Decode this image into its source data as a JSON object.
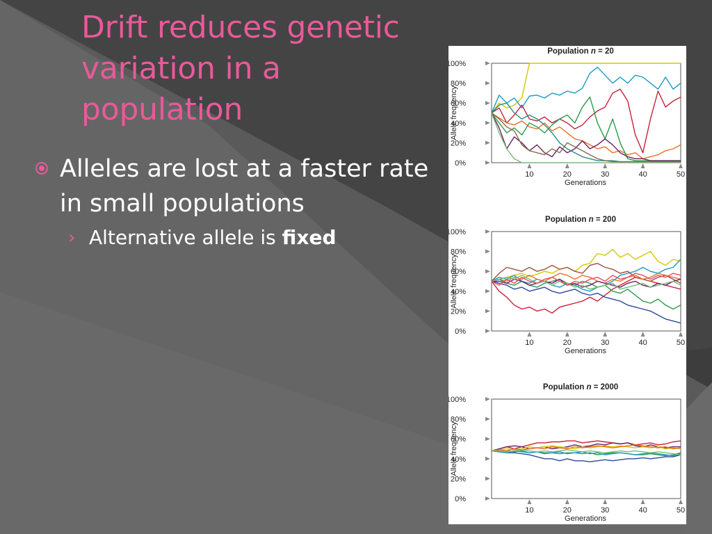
{
  "slide": {
    "title": "Drift reduces genetic variation in a population",
    "bullet": "Alleles are lost at a faster rate in small populations",
    "sub_bullet_prefix": "Alternative allele is ",
    "sub_bullet_bold": "fixed",
    "colors": {
      "title": "#e85a9a",
      "bullet_marker": "#e85a9a",
      "text": "#ffffff"
    },
    "icons": {
      "bullet": "target-bullet-icon",
      "sub_bullet": "chevron-right-icon"
    }
  },
  "chart_data": [
    {
      "type": "line",
      "title": "Population n = 20",
      "xlabel": "Generations",
      "ylabel": "Allele frequency",
      "xlim": [
        0,
        50
      ],
      "ylim": [
        0,
        100
      ],
      "xticks": [
        10,
        20,
        30,
        40,
        50
      ],
      "yticks": [
        "0%",
        "20%",
        "40%",
        "60%",
        "80%",
        "100%"
      ],
      "x": [
        0,
        2,
        4,
        6,
        8,
        10,
        12,
        14,
        16,
        18,
        20,
        22,
        24,
        26,
        28,
        30,
        32,
        34,
        36,
        38,
        40,
        42,
        44,
        46,
        48,
        50
      ],
      "series": [
        {
          "color": "#d4c800",
          "values": [
            50,
            60,
            55,
            58,
            65,
            100,
            100,
            100,
            100,
            100,
            100,
            100,
            100,
            100,
            100,
            100,
            100,
            100,
            100,
            100,
            100,
            100,
            100,
            100,
            100,
            100
          ]
        },
        {
          "color": "#1a9bc4",
          "values": [
            50,
            68,
            60,
            65,
            55,
            67,
            68,
            65,
            70,
            68,
            72,
            70,
            75,
            90,
            96,
            88,
            80,
            86,
            80,
            88,
            86,
            80,
            74,
            86,
            74,
            80
          ]
        },
        {
          "color": "#c8203c",
          "values": [
            50,
            55,
            40,
            48,
            58,
            44,
            42,
            46,
            40,
            44,
            40,
            34,
            38,
            46,
            52,
            56,
            70,
            74,
            62,
            28,
            10,
            44,
            72,
            56,
            62,
            66
          ]
        },
        {
          "color": "#e87028",
          "values": [
            50,
            45,
            40,
            38,
            42,
            36,
            34,
            40,
            32,
            36,
            30,
            24,
            22,
            18,
            14,
            16,
            10,
            12,
            8,
            10,
            4,
            6,
            8,
            12,
            14,
            18
          ]
        },
        {
          "color": "#2a9a4a",
          "values": [
            50,
            40,
            30,
            35,
            28,
            40,
            36,
            30,
            38,
            44,
            48,
            40,
            56,
            66,
            40,
            24,
            44,
            20,
            4,
            2,
            2,
            2,
            2,
            2,
            2,
            2
          ]
        },
        {
          "color": "#6a2060",
          "values": [
            50,
            35,
            14,
            26,
            20,
            12,
            18,
            10,
            6,
            16,
            10,
            14,
            22,
            14,
            18,
            24,
            18,
            10,
            6,
            4,
            4,
            2,
            2,
            2,
            2,
            2
          ]
        },
        {
          "color": "#2a8a8a",
          "values": [
            50,
            58,
            60,
            50,
            44,
            48,
            44,
            38,
            30,
            20,
            14,
            10,
            6,
            4,
            2,
            2,
            2,
            1,
            1,
            1,
            1,
            1,
            1,
            1,
            1,
            1
          ]
        },
        {
          "color": "#7aba7a",
          "values": [
            50,
            30,
            14,
            4,
            0,
            0,
            0,
            0,
            0,
            0,
            0,
            0,
            0,
            0,
            0,
            0,
            0,
            0,
            0,
            0,
            0,
            0,
            0,
            0,
            0,
            0
          ]
        },
        {
          "color": "#8a6a4a",
          "values": [
            50,
            44,
            36,
            32,
            18,
            12,
            10,
            8,
            14,
            10,
            20,
            16,
            12,
            8,
            4,
            2,
            1,
            1,
            1,
            1,
            1,
            1,
            1,
            1,
            1,
            1
          ]
        }
      ]
    },
    {
      "type": "line",
      "title": "Population n = 200",
      "xlabel": "Generations",
      "ylabel": "Allele frequency",
      "xlim": [
        0,
        50
      ],
      "ylim": [
        0,
        100
      ],
      "xticks": [
        10,
        20,
        30,
        40,
        50
      ],
      "yticks": [
        "0%",
        "20%",
        "40%",
        "60%",
        "80%",
        "100%"
      ],
      "x": [
        0,
        2,
        4,
        6,
        8,
        10,
        12,
        14,
        16,
        18,
        20,
        22,
        24,
        26,
        28,
        30,
        32,
        34,
        36,
        38,
        40,
        42,
        44,
        46,
        48,
        50
      ],
      "series": [
        {
          "color": "#d4c800",
          "values": [
            50,
            52,
            54,
            56,
            58,
            55,
            57,
            60,
            58,
            62,
            64,
            60,
            66,
            68,
            78,
            76,
            82,
            74,
            78,
            72,
            76,
            80,
            70,
            66,
            72,
            70
          ]
        },
        {
          "color": "#1a9bc4",
          "values": [
            50,
            54,
            52,
            56,
            50,
            48,
            52,
            50,
            46,
            44,
            48,
            46,
            42,
            40,
            44,
            46,
            50,
            56,
            58,
            60,
            64,
            60,
            58,
            62,
            64,
            72
          ]
        },
        {
          "color": "#c8203c",
          "values": [
            50,
            40,
            34,
            26,
            22,
            24,
            20,
            22,
            18,
            24,
            26,
            28,
            30,
            34,
            30,
            36,
            42,
            46,
            50,
            54,
            52,
            50,
            48,
            46,
            44,
            42
          ]
        },
        {
          "color": "#a05040",
          "values": [
            50,
            58,
            64,
            62,
            60,
            64,
            60,
            62,
            66,
            62,
            64,
            60,
            58,
            66,
            68,
            64,
            62,
            58,
            60,
            54,
            52,
            50,
            54,
            56,
            52,
            48
          ]
        },
        {
          "color": "#e87028",
          "values": [
            50,
            52,
            50,
            54,
            52,
            56,
            52,
            50,
            54,
            58,
            56,
            52,
            56,
            54,
            50,
            48,
            52,
            50,
            54,
            56,
            52,
            54,
            58,
            56,
            54,
            52
          ]
        },
        {
          "color": "#2a9a4a",
          "values": [
            50,
            52,
            48,
            46,
            50,
            46,
            44,
            48,
            50,
            52,
            48,
            46,
            50,
            48,
            44,
            46,
            40,
            38,
            42,
            36,
            30,
            28,
            32,
            26,
            22,
            26
          ]
        },
        {
          "color": "#2a4a9a",
          "values": [
            50,
            48,
            46,
            42,
            44,
            40,
            42,
            44,
            40,
            38,
            40,
            42,
            38,
            36,
            38,
            34,
            32,
            30,
            26,
            24,
            22,
            20,
            16,
            12,
            10,
            8
          ]
        },
        {
          "color": "#6a2060",
          "values": [
            50,
            50,
            48,
            52,
            50,
            46,
            48,
            50,
            48,
            52,
            46,
            48,
            44,
            46,
            50,
            48,
            46,
            44,
            48,
            50,
            46,
            44,
            48,
            46,
            50,
            52
          ]
        },
        {
          "color": "#7aba7a",
          "values": [
            50,
            52,
            54,
            52,
            56,
            52,
            48,
            50,
            46,
            50,
            48,
            44,
            46,
            42,
            44,
            46,
            48,
            42,
            44,
            46,
            48,
            44,
            46,
            48,
            50,
            46
          ]
        },
        {
          "color": "#e84a6a",
          "values": [
            50,
            46,
            52,
            48,
            54,
            50,
            48,
            52,
            54,
            50,
            46,
            50,
            48,
            52,
            54,
            50,
            56,
            52,
            54,
            58,
            56,
            52,
            56,
            54,
            58,
            56
          ]
        }
      ]
    },
    {
      "type": "line",
      "title": "Population n = 2000",
      "xlabel": "Generations",
      "ylabel": "Allele frequency",
      "xlim": [
        0,
        50
      ],
      "ylim": [
        0,
        100
      ],
      "xticks": [
        10,
        20,
        30,
        40,
        50
      ],
      "yticks": [
        "0%",
        "20%",
        "40%",
        "60%",
        "80%",
        "100%"
      ],
      "x": [
        0,
        2,
        4,
        6,
        8,
        10,
        12,
        14,
        16,
        18,
        20,
        22,
        24,
        26,
        28,
        30,
        32,
        34,
        36,
        38,
        40,
        42,
        44,
        46,
        48,
        50
      ],
      "series": [
        {
          "color": "#c8203c",
          "values": [
            48,
            50,
            52,
            50,
            52,
            54,
            56,
            56,
            57,
            57,
            58,
            58,
            56,
            57,
            58,
            57,
            56,
            55,
            56,
            54,
            55,
            56,
            54,
            55,
            57,
            58
          ]
        },
        {
          "color": "#2a4a9a",
          "values": [
            48,
            47,
            46,
            46,
            45,
            44,
            42,
            40,
            40,
            38,
            40,
            38,
            38,
            37,
            38,
            39,
            38,
            39,
            40,
            40,
            41,
            40,
            41,
            42,
            42,
            44
          ]
        },
        {
          "color": "#6a2060",
          "values": [
            48,
            50,
            52,
            53,
            52,
            50,
            51,
            52,
            50,
            51,
            52,
            54,
            52,
            53,
            55,
            54,
            56,
            55,
            56,
            53,
            52,
            54,
            52,
            51,
            52,
            52
          ]
        },
        {
          "color": "#d4c800",
          "values": [
            48,
            49,
            50,
            49,
            50,
            52,
            51,
            52,
            53,
            52,
            51,
            50,
            52,
            51,
            52,
            53,
            52,
            53,
            52,
            51,
            52,
            51,
            52,
            50,
            51,
            50
          ]
        },
        {
          "color": "#2a9a4a",
          "values": [
            48,
            47,
            48,
            47,
            48,
            46,
            47,
            46,
            46,
            45,
            46,
            46,
            45,
            46,
            44,
            45,
            46,
            46,
            45,
            44,
            44,
            45,
            44,
            43,
            44,
            46
          ]
        },
        {
          "color": "#1a9bc4",
          "values": [
            48,
            47,
            46,
            48,
            47,
            46,
            47,
            45,
            46,
            47,
            45,
            46,
            47,
            45,
            46,
            44,
            45,
            46,
            45,
            44,
            45,
            46,
            45,
            44,
            43,
            45
          ]
        },
        {
          "color": "#e87028",
          "values": [
            48,
            49,
            48,
            50,
            49,
            50,
            51,
            50,
            52,
            51,
            50,
            52,
            51,
            52,
            53,
            52,
            51,
            52,
            53,
            54,
            53,
            52,
            51,
            52,
            50,
            51
          ]
        },
        {
          "color": "#7aba7a",
          "values": [
            48,
            48,
            47,
            48,
            49,
            48,
            47,
            48,
            47,
            48,
            49,
            48,
            47,
            48,
            47,
            46,
            47,
            48,
            47,
            48,
            47,
            46,
            47,
            46,
            45,
            44
          ]
        }
      ]
    }
  ]
}
